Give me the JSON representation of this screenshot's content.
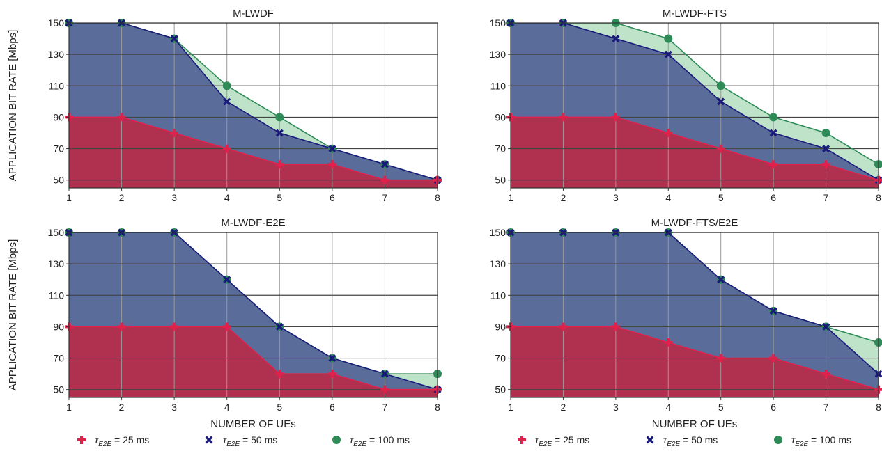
{
  "colors": {
    "s25": "#e0214b",
    "s50": "#1a1a7a",
    "s100": "#2e8b57",
    "fill25": "#b0304f",
    "fill50": "#5a6c9a",
    "fill100": "#bfe3c9"
  },
  "chart_data": [
    {
      "type": "line",
      "title": "M-LWDF",
      "xlabel": "",
      "ylabel": "APPLICATION BIT RATE [Mbps]",
      "xlim": [
        1,
        8
      ],
      "ylim": [
        45,
        150
      ],
      "xticks": [
        1,
        2,
        3,
        4,
        5,
        6,
        7,
        8
      ],
      "yticks": [
        50,
        70,
        90,
        110,
        130,
        150
      ],
      "x": [
        1,
        2,
        3,
        4,
        5,
        6,
        7,
        8
      ],
      "series": [
        {
          "key": "s25",
          "values": [
            90,
            90,
            80,
            70,
            60,
            60,
            50,
            50
          ]
        },
        {
          "key": "s50",
          "values": [
            150,
            150,
            140,
            100,
            80,
            70,
            60,
            50
          ]
        },
        {
          "key": "s100",
          "values": [
            150,
            150,
            140,
            110,
            90,
            70,
            60,
            50
          ]
        }
      ]
    },
    {
      "type": "line",
      "title": "M-LWDF-FTS",
      "xlabel": "",
      "ylabel": "",
      "xlim": [
        1,
        8
      ],
      "ylim": [
        45,
        150
      ],
      "xticks": [
        1,
        2,
        3,
        4,
        5,
        6,
        7,
        8
      ],
      "yticks": [
        50,
        70,
        90,
        110,
        130,
        150
      ],
      "x": [
        1,
        2,
        3,
        4,
        5,
        6,
        7,
        8
      ],
      "series": [
        {
          "key": "s25",
          "values": [
            90,
            90,
            90,
            80,
            70,
            60,
            60,
            50
          ]
        },
        {
          "key": "s50",
          "values": [
            150,
            150,
            140,
            130,
            100,
            80,
            70,
            50
          ]
        },
        {
          "key": "s100",
          "values": [
            150,
            150,
            150,
            140,
            110,
            90,
            80,
            60
          ]
        }
      ]
    },
    {
      "type": "line",
      "title": "M-LWDF-E2E",
      "xlabel": "NUMBER OF UEs",
      "ylabel": "APPLICATION BIT RATE [Mbps]",
      "xlim": [
        1,
        8
      ],
      "ylim": [
        45,
        150
      ],
      "xticks": [
        1,
        2,
        3,
        4,
        5,
        6,
        7,
        8
      ],
      "yticks": [
        50,
        70,
        90,
        110,
        130,
        150
      ],
      "x": [
        1,
        2,
        3,
        4,
        5,
        6,
        7,
        8
      ],
      "series": [
        {
          "key": "s25",
          "values": [
            90,
            90,
            90,
            90,
            60,
            60,
            50,
            50
          ]
        },
        {
          "key": "s50",
          "values": [
            150,
            150,
            150,
            120,
            90,
            70,
            60,
            50
          ]
        },
        {
          "key": "s100",
          "values": [
            150,
            150,
            150,
            120,
            90,
            70,
            60,
            60
          ]
        }
      ]
    },
    {
      "type": "line",
      "title": "M-LWDF-FTS/E2E",
      "xlabel": "NUMBER OF UEs",
      "ylabel": "",
      "xlim": [
        1,
        8
      ],
      "ylim": [
        45,
        150
      ],
      "xticks": [
        1,
        2,
        3,
        4,
        5,
        6,
        7,
        8
      ],
      "yticks": [
        50,
        70,
        90,
        110,
        130,
        150
      ],
      "x": [
        1,
        2,
        3,
        4,
        5,
        6,
        7,
        8
      ],
      "series": [
        {
          "key": "s25",
          "values": [
            90,
            90,
            90,
            80,
            70,
            70,
            60,
            50
          ]
        },
        {
          "key": "s50",
          "values": [
            150,
            150,
            150,
            150,
            120,
            100,
            90,
            60
          ]
        },
        {
          "key": "s100",
          "values": [
            150,
            150,
            150,
            150,
            120,
            100,
            90,
            80
          ]
        }
      ]
    }
  ],
  "legend": [
    {
      "key": "s25",
      "sym": "τ",
      "sub": "E2E",
      "rest": " = 25 ms",
      "marker": "plus"
    },
    {
      "key": "s50",
      "sym": "τ",
      "sub": "E2E",
      "rest": " = 50 ms",
      "marker": "x"
    },
    {
      "key": "s100",
      "sym": "τ",
      "sub": "E2E",
      "rest": " = 100 ms",
      "marker": "circle"
    }
  ]
}
